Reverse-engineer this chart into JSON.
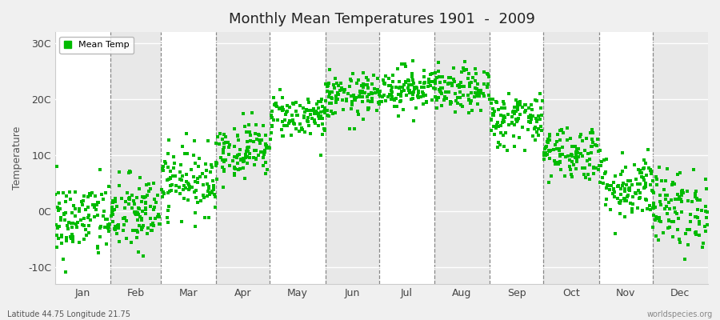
{
  "title": "Monthly Mean Temperatures 1901  -  2009",
  "ylabel": "Temperature",
  "xlabel_labels": [
    "Jan",
    "Feb",
    "Mar",
    "Apr",
    "May",
    "Jun",
    "Jul",
    "Aug",
    "Sep",
    "Oct",
    "Nov",
    "Dec"
  ],
  "ytick_labels": [
    "-10C",
    "0C",
    "10C",
    "20C",
    "30C"
  ],
  "ytick_values": [
    -10,
    0,
    10,
    20,
    30
  ],
  "ylim": [
    -13,
    32
  ],
  "background_color": "#f0f0f0",
  "plot_bg_color": "#ffffff",
  "alt_band_color": "#e8e8e8",
  "marker_color": "#00bb00",
  "marker_size": 3.5,
  "legend_label": "Mean Temp",
  "footer_left": "Latitude 44.75 Longitude 21.75",
  "footer_right": "worldspecies.org",
  "dashed_line_color": "#888888",
  "num_years": 109,
  "monthly_means": [
    -1.5,
    -0.5,
    5.5,
    11.0,
    17.0,
    20.5,
    22.0,
    21.5,
    16.5,
    10.5,
    4.5,
    0.5
  ],
  "monthly_stds": [
    3.5,
    3.5,
    3.0,
    2.5,
    2.0,
    2.0,
    2.0,
    2.0,
    2.5,
    2.5,
    3.0,
    3.5
  ],
  "month_days": [
    31,
    28,
    31,
    30,
    31,
    30,
    31,
    31,
    30,
    31,
    30,
    31
  ],
  "seed": 42
}
